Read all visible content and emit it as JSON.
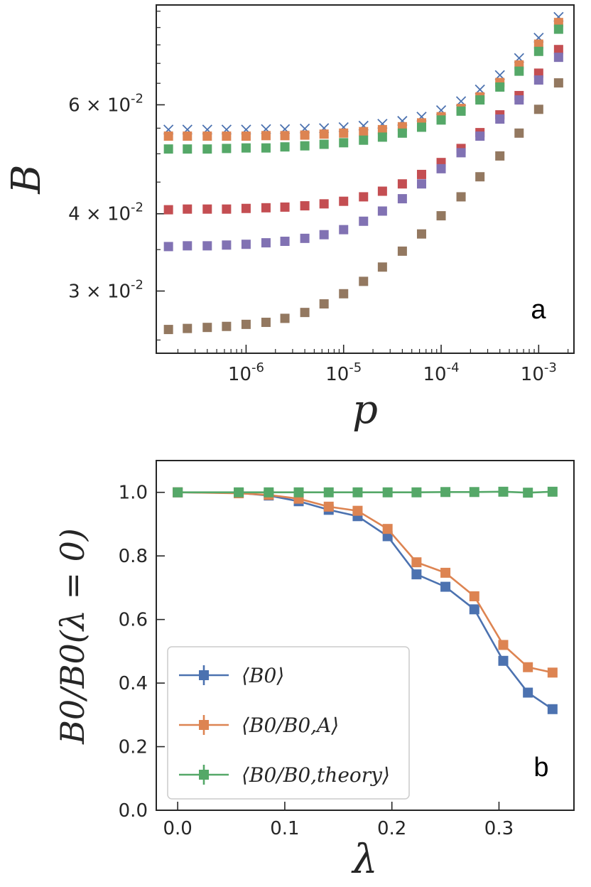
{
  "chart_data": [
    {
      "type": "scatter",
      "panel_label": "a",
      "xlabel": "p",
      "ylabel": "B",
      "xscale": "log",
      "yscale": "log",
      "xlim": [
        1.2e-07,
        0.0023
      ],
      "ylim": [
        0.0238,
        0.087
      ],
      "x_ticks": [
        {
          "value": 1e-06,
          "label": "10",
          "exp": "-6"
        },
        {
          "value": 1e-05,
          "label": "10",
          "exp": "-5"
        },
        {
          "value": 0.0001,
          "label": "10",
          "exp": "-4"
        },
        {
          "value": 0.001,
          "label": "10",
          "exp": "-3"
        }
      ],
      "y_ticks": [
        {
          "value": 0.03,
          "label": "3 × 10",
          "exp": "-2"
        },
        {
          "value": 0.04,
          "label": "4 × 10",
          "exp": "-2"
        },
        {
          "value": 0.06,
          "label": "6 × 10",
          "exp": "-2"
        }
      ],
      "grid": false,
      "x": [
        1.6e-07,
        2.5e-07,
        4e-07,
        6.3e-07,
        1e-06,
        1.6e-06,
        2.5e-06,
        4e-06,
        6.3e-06,
        1e-05,
        1.6e-05,
        2.5e-05,
        4e-05,
        6.3e-05,
        0.0001,
        0.00016,
        0.00025,
        0.0004,
        0.00063,
        0.001,
        0.0016
      ],
      "series": [
        {
          "marker": "x",
          "color": "#4c72b0",
          "values": [
            0.0547,
            0.0547,
            0.0547,
            0.0547,
            0.0547,
            0.0548,
            0.0548,
            0.0549,
            0.055,
            0.0552,
            0.0555,
            0.0559,
            0.0565,
            0.0574,
            0.0588,
            0.0608,
            0.0635,
            0.067,
            0.0714,
            0.077,
            0.0832
          ]
        },
        {
          "marker": "s",
          "color": "#dd8452",
          "values": [
            0.0534,
            0.0534,
            0.0534,
            0.0534,
            0.0534,
            0.0535,
            0.0535,
            0.0536,
            0.0538,
            0.054,
            0.0543,
            0.0547,
            0.0553,
            0.0561,
            0.0574,
            0.0592,
            0.0618,
            0.0652,
            0.0696,
            0.0752,
            0.0815
          ]
        },
        {
          "marker": "s",
          "color": "#55a868",
          "values": [
            0.0509,
            0.0509,
            0.0509,
            0.051,
            0.0511,
            0.0511,
            0.0513,
            0.0515,
            0.0518,
            0.0521,
            0.0526,
            0.0532,
            0.054,
            0.0552,
            0.0567,
            0.0586,
            0.0611,
            0.0641,
            0.068,
            0.0732,
            0.0795
          ]
        },
        {
          "marker": "s",
          "color": "#c44e52",
          "values": [
            0.0406,
            0.0407,
            0.0407,
            0.0407,
            0.0408,
            0.0409,
            0.041,
            0.0412,
            0.0415,
            0.0419,
            0.0426,
            0.0435,
            0.0447,
            0.0463,
            0.0484,
            0.051,
            0.0541,
            0.0578,
            0.0621,
            0.0675,
            0.0737
          ]
        },
        {
          "marker": "s",
          "color": "#8172b3",
          "values": [
            0.0354,
            0.0355,
            0.0355,
            0.0356,
            0.0357,
            0.0359,
            0.0361,
            0.0365,
            0.037,
            0.0377,
            0.0389,
            0.0404,
            0.0423,
            0.0447,
            0.0473,
            0.0502,
            0.0534,
            0.0569,
            0.0611,
            0.0658,
            0.0716
          ]
        },
        {
          "marker": "s",
          "color": "#937860",
          "values": [
            0.026,
            0.0261,
            0.0262,
            0.0263,
            0.0265,
            0.0267,
            0.0271,
            0.0277,
            0.0286,
            0.0297,
            0.0311,
            0.0328,
            0.0348,
            0.0371,
            0.0397,
            0.0426,
            0.0459,
            0.0496,
            0.054,
            0.059,
            0.0651
          ]
        }
      ]
    },
    {
      "type": "line",
      "panel_label": "b",
      "xlabel": "λ",
      "ylabel": "B0/B0(λ = 0)",
      "xlim": [
        -0.02,
        0.37
      ],
      "ylim": [
        0.0,
        1.1
      ],
      "x_ticks": [
        "0.0",
        "0.1",
        "0.2",
        "0.3"
      ],
      "y_ticks": [
        "0.0",
        "0.2",
        "0.4",
        "0.6",
        "0.8",
        "1.0"
      ],
      "grid": false,
      "legend_position": "lower-left",
      "x": [
        0.0,
        0.057,
        0.085,
        0.113,
        0.141,
        0.168,
        0.196,
        0.223,
        0.25,
        0.277,
        0.304,
        0.327,
        0.35
      ],
      "series": [
        {
          "name": "⟨B0⟩",
          "color": "#4c72b0",
          "values": [
            1.0,
            0.998,
            0.99,
            0.972,
            0.945,
            0.925,
            0.862,
            0.742,
            0.703,
            0.632,
            0.47,
            0.37,
            0.318
          ]
        },
        {
          "name": "⟨B0/B0,A⟩",
          "color": "#dd8452",
          "values": [
            1.0,
            0.997,
            0.992,
            0.98,
            0.955,
            0.942,
            0.885,
            0.78,
            0.747,
            0.673,
            0.52,
            0.45,
            0.433
          ]
        },
        {
          "name": "⟨B0/B0,theory⟩",
          "color": "#55a868",
          "values": [
            1.0,
            1.0,
            1.0,
            1.0,
            1.0,
            1.0,
            1.0,
            1.0,
            1.001,
            1.001,
            1.002,
            0.999,
            1.002
          ]
        }
      ]
    }
  ]
}
